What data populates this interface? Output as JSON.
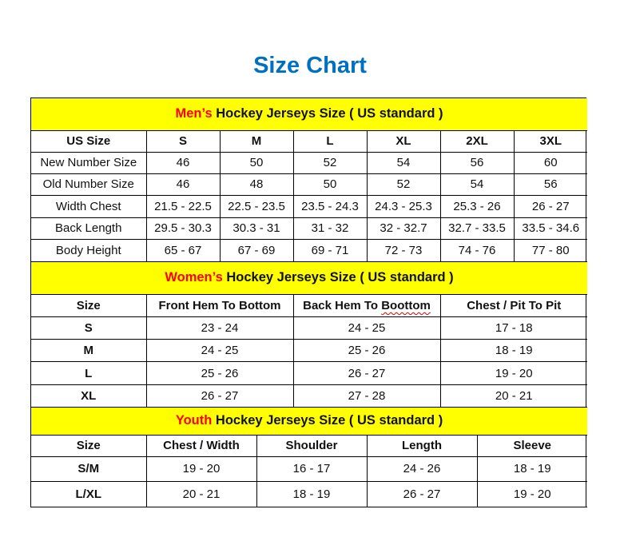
{
  "title": "Size Chart",
  "colors": {
    "title": "#0070C0",
    "banner_bg": "#FFFF00",
    "banner_accent": "#FF0000"
  },
  "mens": {
    "banner_accent": "Men’s",
    "banner_rest": " Hockey Jerseys Size ( US standard )",
    "headers": [
      "US Size",
      "S",
      "M",
      "L",
      "XL",
      "2XL",
      "3XL"
    ],
    "rows": [
      [
        "New Number Size",
        "46",
        "50",
        "52",
        "54",
        "56",
        "60"
      ],
      [
        "Old Number Size",
        "46",
        "48",
        "50",
        "52",
        "54",
        "56"
      ],
      [
        "Width Chest",
        "21.5 - 22.5",
        "22.5 - 23.5",
        "23.5 - 24.3",
        "24.3 - 25.3",
        "25.3 - 26",
        "26 - 27"
      ],
      [
        "Back Length",
        "29.5 - 30.3",
        "30.3 - 31",
        "31 - 32",
        "32 - 32.7",
        "32.7 - 33.5",
        "33.5 - 34.6"
      ],
      [
        "Body Height",
        "65 - 67",
        "67 - 69",
        "69 - 71",
        "72 - 73",
        "74 - 76",
        "77 - 80"
      ]
    ]
  },
  "womens": {
    "banner_accent": "Women’s",
    "banner_rest": " Hockey Jerseys Size ( US standard )",
    "headers": [
      "Size",
      "Front Hem To Bottom",
      "Back Hem To Boottom",
      "Chest / Pit To Pit"
    ],
    "rows": [
      [
        "S",
        "23 - 24",
        "24 - 25",
        "17 - 18"
      ],
      [
        "M",
        "24 - 25",
        "25 - 26",
        "18 - 19"
      ],
      [
        "L",
        "25 - 26",
        "26 - 27",
        "19 - 20"
      ],
      [
        "XL",
        "26 - 27",
        "27 - 28",
        "20 - 21"
      ]
    ]
  },
  "youth": {
    "banner_accent": "Youth",
    "banner_rest": " Hockey Jerseys Size ( US standard )",
    "headers": [
      "Size",
      "Chest / Width",
      "Shoulder",
      "Length",
      "Sleeve"
    ],
    "rows": [
      [
        "S/M",
        "19 - 20",
        "16 - 17",
        "24 - 26",
        "18 - 19"
      ],
      [
        "L/XL",
        "20 - 21",
        "18 - 19",
        "26 - 27",
        "19 - 20"
      ]
    ]
  }
}
